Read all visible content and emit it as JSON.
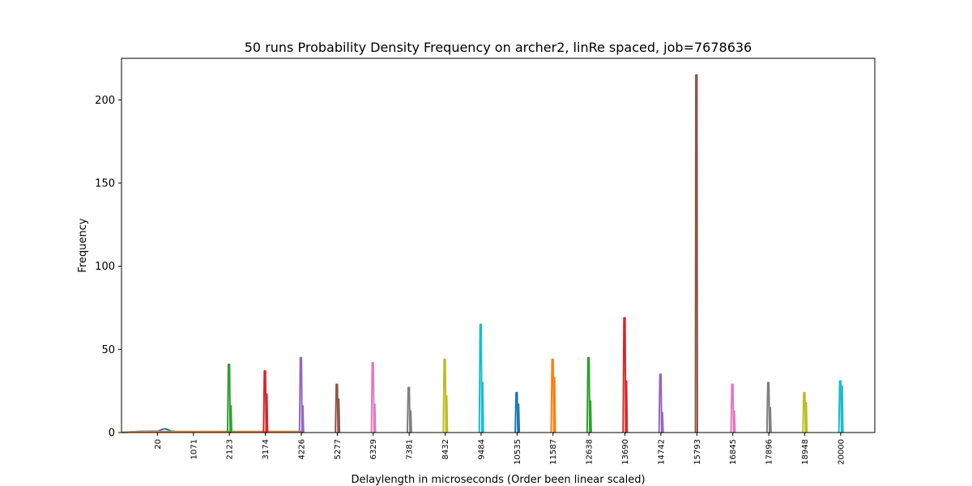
{
  "chart_data": {
    "type": "line",
    "title": "50 runs Probability Density Frequency on archer2, linRe spaced, job=7678636",
    "xlabel": "Delaylength in microseconds (Order been linear scaled)",
    "ylabel": "Frequency",
    "ylim": [
      0,
      225
    ],
    "yticks": [
      0,
      50,
      100,
      150,
      200
    ],
    "xticks": [
      "20",
      "1071",
      "2123",
      "3174",
      "4226",
      "5277",
      "6329",
      "7381",
      "8432",
      "9484",
      "10535",
      "11587",
      "12638",
      "13690",
      "14742",
      "15793",
      "16845",
      "17896",
      "18948",
      "20000"
    ],
    "xlim_index": [
      -1.0,
      19.95
    ],
    "grid": false,
    "legend": "none",
    "series": [
      {
        "delay": "20",
        "color": "#1f77b4",
        "peak": 2.2,
        "secondary": 0,
        "kind": "hump"
      },
      {
        "delay": "1071",
        "color": "#ff7f0e",
        "peak": 0.6,
        "secondary": 0,
        "kind": "flat"
      },
      {
        "delay": "2123",
        "color": "#2ca02c",
        "peak": 41,
        "secondary": 16,
        "kind": "spike"
      },
      {
        "delay": "3174",
        "color": "#d62728",
        "peak": 37,
        "secondary": 23,
        "kind": "spike"
      },
      {
        "delay": "4226",
        "color": "#9467bd",
        "peak": 45,
        "secondary": 16,
        "kind": "spike"
      },
      {
        "delay": "5277",
        "color": "#8c564b",
        "peak": 29,
        "secondary": 20,
        "kind": "spike"
      },
      {
        "delay": "6329",
        "color": "#e377c2",
        "peak": 42,
        "secondary": 17,
        "kind": "spike"
      },
      {
        "delay": "7381",
        "color": "#7f7f7f",
        "peak": 27,
        "secondary": 13,
        "kind": "spike"
      },
      {
        "delay": "8432",
        "color": "#bcbd22",
        "peak": 44,
        "secondary": 22,
        "kind": "spike"
      },
      {
        "delay": "9484",
        "color": "#17becf",
        "peak": 65,
        "secondary": 30,
        "kind": "spike"
      },
      {
        "delay": "10535",
        "color": "#1f77b4",
        "peak": 24,
        "secondary": 17,
        "kind": "spike"
      },
      {
        "delay": "11587",
        "color": "#ff7f0e",
        "peak": 44,
        "secondary": 33,
        "kind": "spike"
      },
      {
        "delay": "12638",
        "color": "#2ca02c",
        "peak": 45,
        "secondary": 19,
        "kind": "spike"
      },
      {
        "delay": "13690",
        "color": "#d62728",
        "peak": 69,
        "secondary": 31,
        "kind": "spike"
      },
      {
        "delay": "14742",
        "color": "#9467bd",
        "peak": 35,
        "secondary": 12,
        "kind": "spike"
      },
      {
        "delay": "15793",
        "color": "#8c564b",
        "peak": 215,
        "secondary": 0,
        "kind": "spike"
      },
      {
        "delay": "16845",
        "color": "#e377c2",
        "peak": 29,
        "secondary": 13,
        "kind": "spike"
      },
      {
        "delay": "17896",
        "color": "#7f7f7f",
        "peak": 30,
        "secondary": 15,
        "kind": "spike"
      },
      {
        "delay": "18948",
        "color": "#bcbd22",
        "peak": 24,
        "secondary": 18,
        "kind": "spike"
      },
      {
        "delay": "20000",
        "color": "#17becf",
        "peak": 31,
        "secondary": 28,
        "kind": "spike"
      }
    ]
  }
}
